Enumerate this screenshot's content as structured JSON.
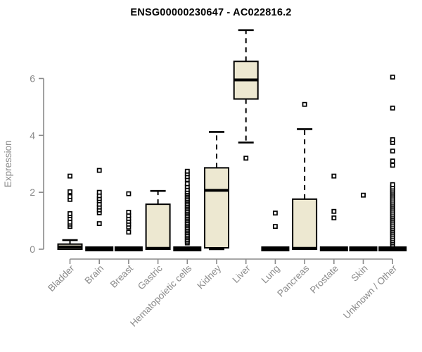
{
  "chart_data": {
    "type": "box",
    "title": "ENSG00000230647 - AC022816.2",
    "ylabel": "Expression",
    "xlabel": "",
    "yticks": [
      0,
      2,
      4,
      6
    ],
    "ylim": [
      0,
      7.8
    ],
    "grid": false,
    "legend": "none",
    "colors": {
      "box_fill": "#EDE8D1",
      "box_stroke": "#000000",
      "axis": "#8a8a8a",
      "tick_label": "#8a8a8a",
      "title": "#000000",
      "outlier_fill": "#ffffff"
    },
    "categories": [
      "Bladder",
      "Brain",
      "Breast",
      "Gastric",
      "Hematopoietic cells",
      "Kidney",
      "Liver",
      "Lung",
      "Pancreas",
      "Prostate",
      "Skin",
      "Unknown / Other"
    ],
    "series": [
      {
        "name": "Bladder",
        "q1": 0.0,
        "median": 0.08,
        "q3": 0.18,
        "whisker_low": 0.0,
        "whisker_high": 0.32,
        "outliers": [
          0.8,
          0.88,
          0.95,
          1.08,
          1.18,
          1.25,
          1.75,
          1.85,
          2.02,
          2.57
        ]
      },
      {
        "name": "Brain",
        "q1": 0.0,
        "median": 0.0,
        "q3": 0.0,
        "whisker_low": 0.0,
        "whisker_high": 0.0,
        "outliers": [
          0.9,
          1.28,
          1.38,
          1.48,
          1.58,
          1.7,
          1.78,
          1.88,
          2.0,
          2.77
        ]
      },
      {
        "name": "Breast",
        "q1": 0.0,
        "median": 0.0,
        "q3": 0.0,
        "whisker_low": 0.0,
        "whisker_high": 0.0,
        "outliers": [
          0.6,
          0.78,
          0.88,
          0.98,
          1.08,
          1.18,
          1.3,
          1.95
        ]
      },
      {
        "name": "Gastric",
        "q1": 0.0,
        "median": 0.03,
        "q3": 1.58,
        "whisker_low": 0.0,
        "whisker_high": 2.05,
        "outliers": []
      },
      {
        "name": "Hematopoietic cells",
        "q1": 0.0,
        "median": 0.0,
        "q3": 0.0,
        "whisker_low": 0.0,
        "whisker_high": 0.0,
        "outliers": [
          0.22,
          0.28,
          0.34,
          0.4,
          0.46,
          0.52,
          0.58,
          0.64,
          0.7,
          0.76,
          0.82,
          0.88,
          0.94,
          1.0,
          1.06,
          1.12,
          1.18,
          1.24,
          1.3,
          1.36,
          1.42,
          1.48,
          1.54,
          1.6,
          1.66,
          1.72,
          1.78,
          1.84,
          1.9,
          1.96,
          2.02,
          2.1,
          2.2,
          2.3,
          2.45,
          2.55,
          2.65,
          2.74
        ]
      },
      {
        "name": "Kidney",
        "q1": 0.05,
        "median": 2.07,
        "q3": 2.86,
        "whisker_low": 0.0,
        "whisker_high": 4.12,
        "outliers": []
      },
      {
        "name": "Liver",
        "q1": 5.28,
        "median": 5.95,
        "q3": 6.6,
        "whisker_low": 3.75,
        "whisker_high": 7.7,
        "outliers": [
          3.2
        ]
      },
      {
        "name": "Lung",
        "q1": 0.0,
        "median": 0.0,
        "q3": 0.0,
        "whisker_low": 0.0,
        "whisker_high": 0.0,
        "outliers": [
          0.8,
          1.27
        ]
      },
      {
        "name": "Pancreas",
        "q1": 0.0,
        "median": 0.03,
        "q3": 1.76,
        "whisker_low": 0.0,
        "whisker_high": 4.22,
        "outliers": [
          5.09
        ]
      },
      {
        "name": "Prostate",
        "q1": 0.0,
        "median": 0.0,
        "q3": 0.0,
        "whisker_low": 0.0,
        "whisker_high": 0.0,
        "outliers": [
          1.1,
          1.33,
          2.57
        ]
      },
      {
        "name": "Skin",
        "q1": 0.0,
        "median": 0.0,
        "q3": 0.0,
        "whisker_low": 0.0,
        "whisker_high": 0.0,
        "outliers": [
          1.9
        ]
      },
      {
        "name": "Unknown / Other",
        "q1": 0.0,
        "median": 0.0,
        "q3": 0.0,
        "whisker_low": 0.0,
        "whisker_high": 0.0,
        "outliers": [
          0.15,
          0.22,
          0.29,
          0.36,
          0.43,
          0.5,
          0.57,
          0.64,
          0.71,
          0.78,
          0.85,
          0.92,
          0.99,
          1.06,
          1.13,
          1.2,
          1.27,
          1.34,
          1.41,
          1.48,
          1.55,
          1.62,
          1.69,
          1.76,
          1.83,
          1.9,
          1.97,
          2.04,
          2.11,
          2.18,
          2.27,
          2.95,
          3.1,
          3.45,
          3.75,
          3.85,
          4.96,
          6.05
        ]
      }
    ]
  }
}
